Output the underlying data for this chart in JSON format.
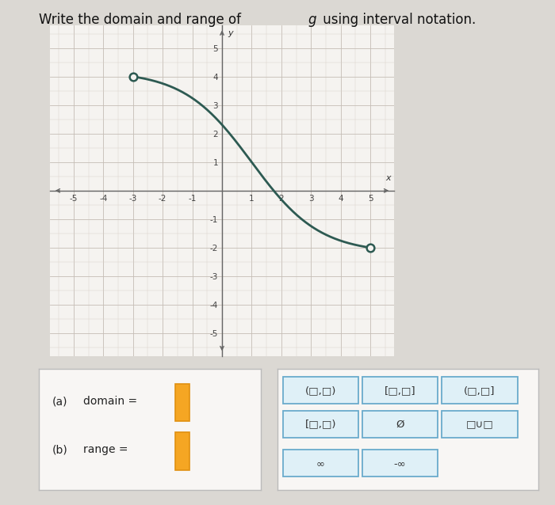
{
  "graph_bg": "#f5f3f0",
  "outer_bg": "#dbd8d3",
  "grid_color": "#c5bdb5",
  "grid_minor_color": "#d8d0c8",
  "axis_color": "#666666",
  "curve_color": "#2d5a52",
  "curve_linewidth": 2.0,
  "open_circle_color": "#2d5a52",
  "open_circle_size": 7,
  "x_start": -3,
  "y_start": 4,
  "x_end": 5,
  "y_end": -2,
  "xlim": [
    -5.8,
    5.8
  ],
  "ylim": [
    -5.8,
    5.8
  ],
  "xticks": [
    -5,
    -4,
    -3,
    -2,
    -1,
    1,
    2,
    3,
    4,
    5
  ],
  "yticks": [
    -5,
    -4,
    -3,
    -2,
    -1,
    1,
    2,
    3,
    4,
    5
  ],
  "xlabel": "x",
  "ylabel": "y",
  "answer_box_bg": "#f8f6f4",
  "answer_box_border": "#bbbbbb",
  "input_bar_color": "#f5a623",
  "input_bar_border": "#e09010",
  "button_bg": "#dff0f7",
  "button_border": "#6aabcc",
  "button_text_color": "#333333",
  "domain_label_a": "(a)",
  "domain_label_b": "domain =",
  "range_label_a": "(b)",
  "range_label_b": "range =",
  "title_part1": "Write the domain and range of ",
  "title_g": "g",
  "title_part2": " using interval notation.",
  "buttons_row1": [
    "(□,□)",
    "[□,□]",
    "(□,□]"
  ],
  "buttons_row2": [
    "[□,□)",
    "Ø",
    "□∪□"
  ],
  "buttons_row3": [
    "∞",
    "-∞"
  ]
}
